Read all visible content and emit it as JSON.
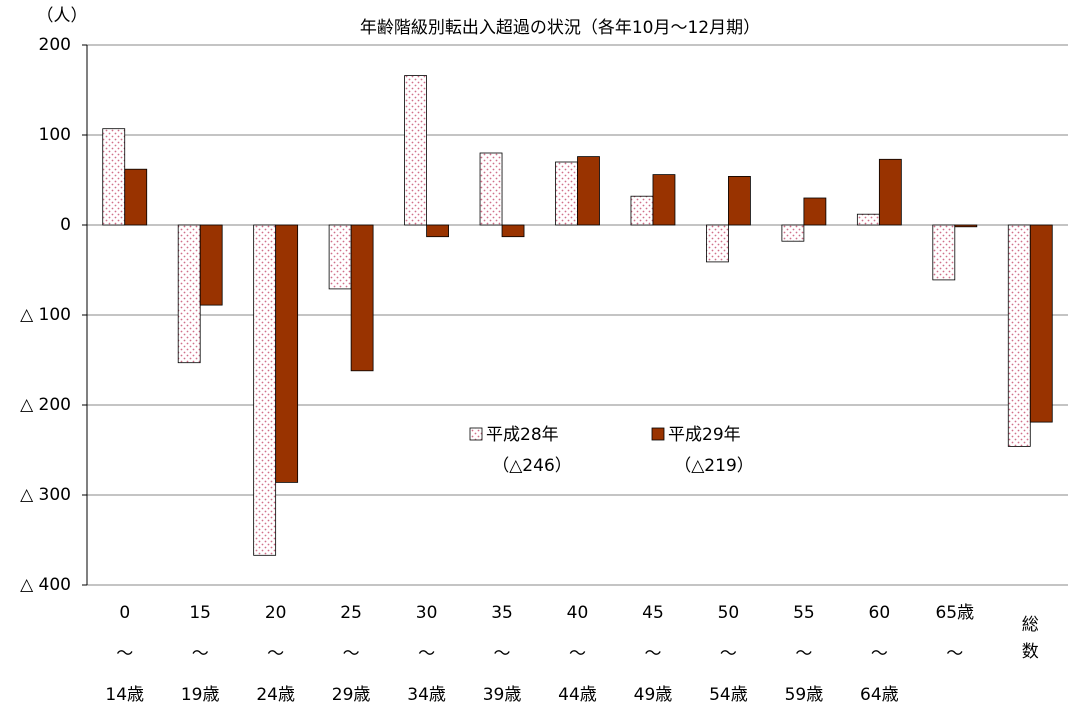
{
  "chart_data": {
    "type": "bar",
    "title": "年齢階級別転出入超過の状況（各年10月〜12月期）",
    "y_unit": "（人）",
    "categories": [
      [
        "0",
        "〜",
        "14歳"
      ],
      [
        "15",
        "〜",
        "19歳"
      ],
      [
        "20",
        "〜",
        "24歳"
      ],
      [
        "25",
        "〜",
        "29歳"
      ],
      [
        "30",
        "〜",
        "34歳"
      ],
      [
        "35",
        "〜",
        "39歳"
      ],
      [
        "40",
        "〜",
        "44歳"
      ],
      [
        "45",
        "〜",
        "49歳"
      ],
      [
        "50",
        "〜",
        "54歳"
      ],
      [
        "55",
        "〜",
        "59歳"
      ],
      [
        "60",
        "〜",
        "64歳"
      ],
      [
        "65歳",
        "〜"
      ],
      [
        "総",
        "数"
      ]
    ],
    "series": [
      {
        "name": "平成28年",
        "note": "（△246）",
        "color": "#d0708a",
        "pattern": "dots",
        "values": [
          107,
          -153,
          -367,
          -71,
          166,
          80,
          70,
          32,
          -41,
          -18,
          12,
          -61,
          -246
        ]
      },
      {
        "name": "平成29年",
        "note": "（△219）",
        "color": "#993300",
        "pattern": "solid",
        "values": [
          62,
          -89,
          -286,
          -162,
          -13,
          -13,
          76,
          56,
          54,
          30,
          73,
          -2,
          -219
        ]
      }
    ],
    "ylim": [
      -400,
      200
    ],
    "yticks": [
      {
        "value": -400,
        "label": "△ 400"
      },
      {
        "value": -300,
        "label": "△ 300"
      },
      {
        "value": -200,
        "label": "△ 200"
      },
      {
        "value": -100,
        "label": "△ 100"
      },
      0,
      100,
      200
    ],
    "grid": true
  }
}
